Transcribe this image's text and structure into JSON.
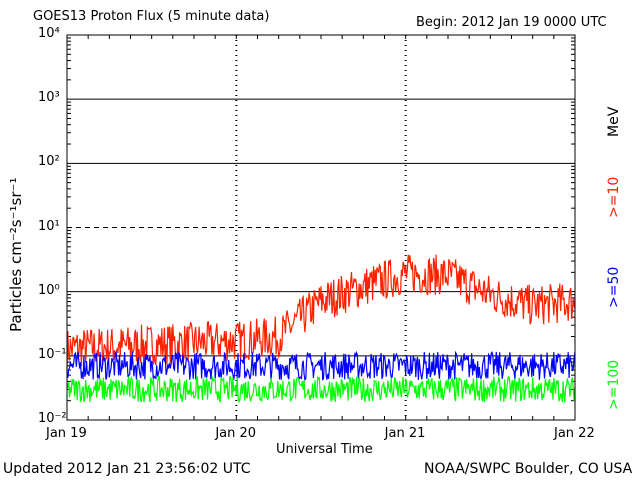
{
  "header": {
    "title": "GOES13 Proton Flux (5 minute data)",
    "begin": "Begin: 2012 Jan 19 0000 UTC"
  },
  "footer": {
    "updated": "Updated 2012 Jan 21 23:56:02 UTC",
    "credit": "NOAA/SWPC Boulder, CO USA"
  },
  "chart_data": {
    "type": "line",
    "title": "GOES13 Proton Flux (5 minute data)",
    "xlabel": "Universal Time",
    "ylabel": "Particles cm⁻²s⁻¹sr⁻¹",
    "y_scale": "log",
    "ylim": [
      0.01,
      10000
    ],
    "y_ticks": [
      {
        "value": 10000,
        "label": "10⁴"
      },
      {
        "value": 1000,
        "label": "10³"
      },
      {
        "value": 100,
        "label": "10²"
      },
      {
        "value": 10,
        "label": "10¹"
      },
      {
        "value": 1,
        "label": "10⁰"
      },
      {
        "value": 0.1,
        "label": "10⁻¹"
      },
      {
        "value": 0.01,
        "label": "10⁻²"
      }
    ],
    "x": [
      "2012-01-19T00:00",
      "2012-01-19T12:00",
      "2012-01-20T00:00",
      "2012-01-20T06:00",
      "2012-01-20T12:00",
      "2012-01-20T18:00",
      "2012-01-21T00:00",
      "2012-01-21T06:00",
      "2012-01-21T12:00",
      "2012-01-21T18:00",
      "2012-01-22T00:00"
    ],
    "x_ticks": [
      "Jan 19",
      "Jan 20",
      "Jan 21",
      "Jan 22"
    ],
    "xlim": [
      "2012-01-19T00:00",
      "2012-01-22T00:00"
    ],
    "series": [
      {
        "name": ">=10",
        "color": "#ff2000",
        "values": [
          0.13,
          0.15,
          0.17,
          0.2,
          0.7,
          1.2,
          1.9,
          1.8,
          0.9,
          0.6,
          0.7
        ]
      },
      {
        "name": ">=50",
        "color": "#0000ff",
        "values": [
          0.07,
          0.07,
          0.07,
          0.07,
          0.07,
          0.07,
          0.07,
          0.07,
          0.07,
          0.07,
          0.07
        ]
      },
      {
        "name": ">=100",
        "color": "#00ff00",
        "values": [
          0.03,
          0.03,
          0.03,
          0.03,
          0.03,
          0.03,
          0.03,
          0.03,
          0.03,
          0.03,
          0.03
        ]
      }
    ],
    "unit_label": "MeV",
    "grid": true,
    "legend": "right"
  }
}
